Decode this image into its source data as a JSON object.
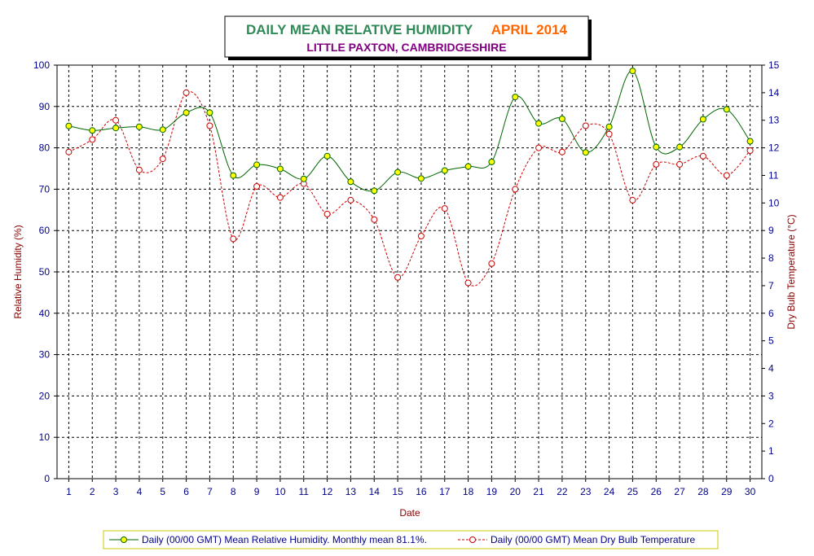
{
  "chart_data": {
    "type": "line",
    "title": "DAILY MEAN RELATIVE HUMIDITY",
    "title_period": "APRIL 2014",
    "subtitle": "LITTLE PAXTON, CAMBRIDGESHIRE",
    "xlabel": "Date",
    "ylabel": "Relative Humidity (%)",
    "y2label": "Dry Bulb Temperature (°C)",
    "x": [
      1,
      2,
      3,
      4,
      5,
      6,
      7,
      8,
      9,
      10,
      11,
      12,
      13,
      14,
      15,
      16,
      17,
      18,
      19,
      20,
      21,
      22,
      23,
      24,
      25,
      26,
      27,
      28,
      29,
      30
    ],
    "ylim": [
      0,
      100
    ],
    "yticks": [
      0,
      10,
      20,
      30,
      40,
      50,
      60,
      70,
      80,
      90,
      100
    ],
    "y2lim": [
      0,
      15
    ],
    "y2ticks": [
      0,
      1,
      2,
      3,
      4,
      5,
      6,
      7,
      8,
      9,
      10,
      11,
      12,
      13,
      14,
      15
    ],
    "grid": true,
    "legend_position": "bottom",
    "series": [
      {
        "name": "Daily (00/00 GMT) Mean Relative Humidity. Monthly mean 81.1%.",
        "axis": "left",
        "line_color": "#006400",
        "marker_color": "#ffff00",
        "dashed": false,
        "values": [
          85.3,
          84.2,
          84.8,
          85.1,
          84.4,
          88.5,
          88.5,
          73.3,
          75.9,
          74.9,
          72.5,
          78.0,
          71.8,
          69.6,
          74.1,
          72.6,
          74.5,
          75.5,
          76.6,
          92.3,
          85.9,
          87.0,
          78.9,
          85.1,
          98.6,
          80.2,
          80.2,
          86.9,
          89.3,
          81.6
        ]
      },
      {
        "name": "Daily (00/00 GMT) Mean Dry Bulb Temperature",
        "axis": "right",
        "line_color": "#cc0000",
        "marker_color": "#ffffff",
        "dashed": true,
        "values": [
          11.85,
          12.3,
          13.0,
          11.2,
          11.6,
          14.0,
          12.8,
          8.7,
          10.6,
          10.2,
          10.7,
          9.6,
          10.1,
          9.4,
          7.3,
          8.8,
          9.8,
          7.1,
          7.8,
          10.5,
          12.0,
          11.85,
          12.8,
          12.5,
          10.1,
          11.4,
          11.4,
          11.7,
          11.0,
          11.9
        ]
      }
    ],
    "colors": {
      "plot_border": "#000000",
      "tick_labels": "#00008b",
      "axis_title": "#8b0000",
      "title": "#2e8b57",
      "title_period": "#ff6600",
      "subtitle": "#800080",
      "legend_border": "#c8c800"
    }
  }
}
